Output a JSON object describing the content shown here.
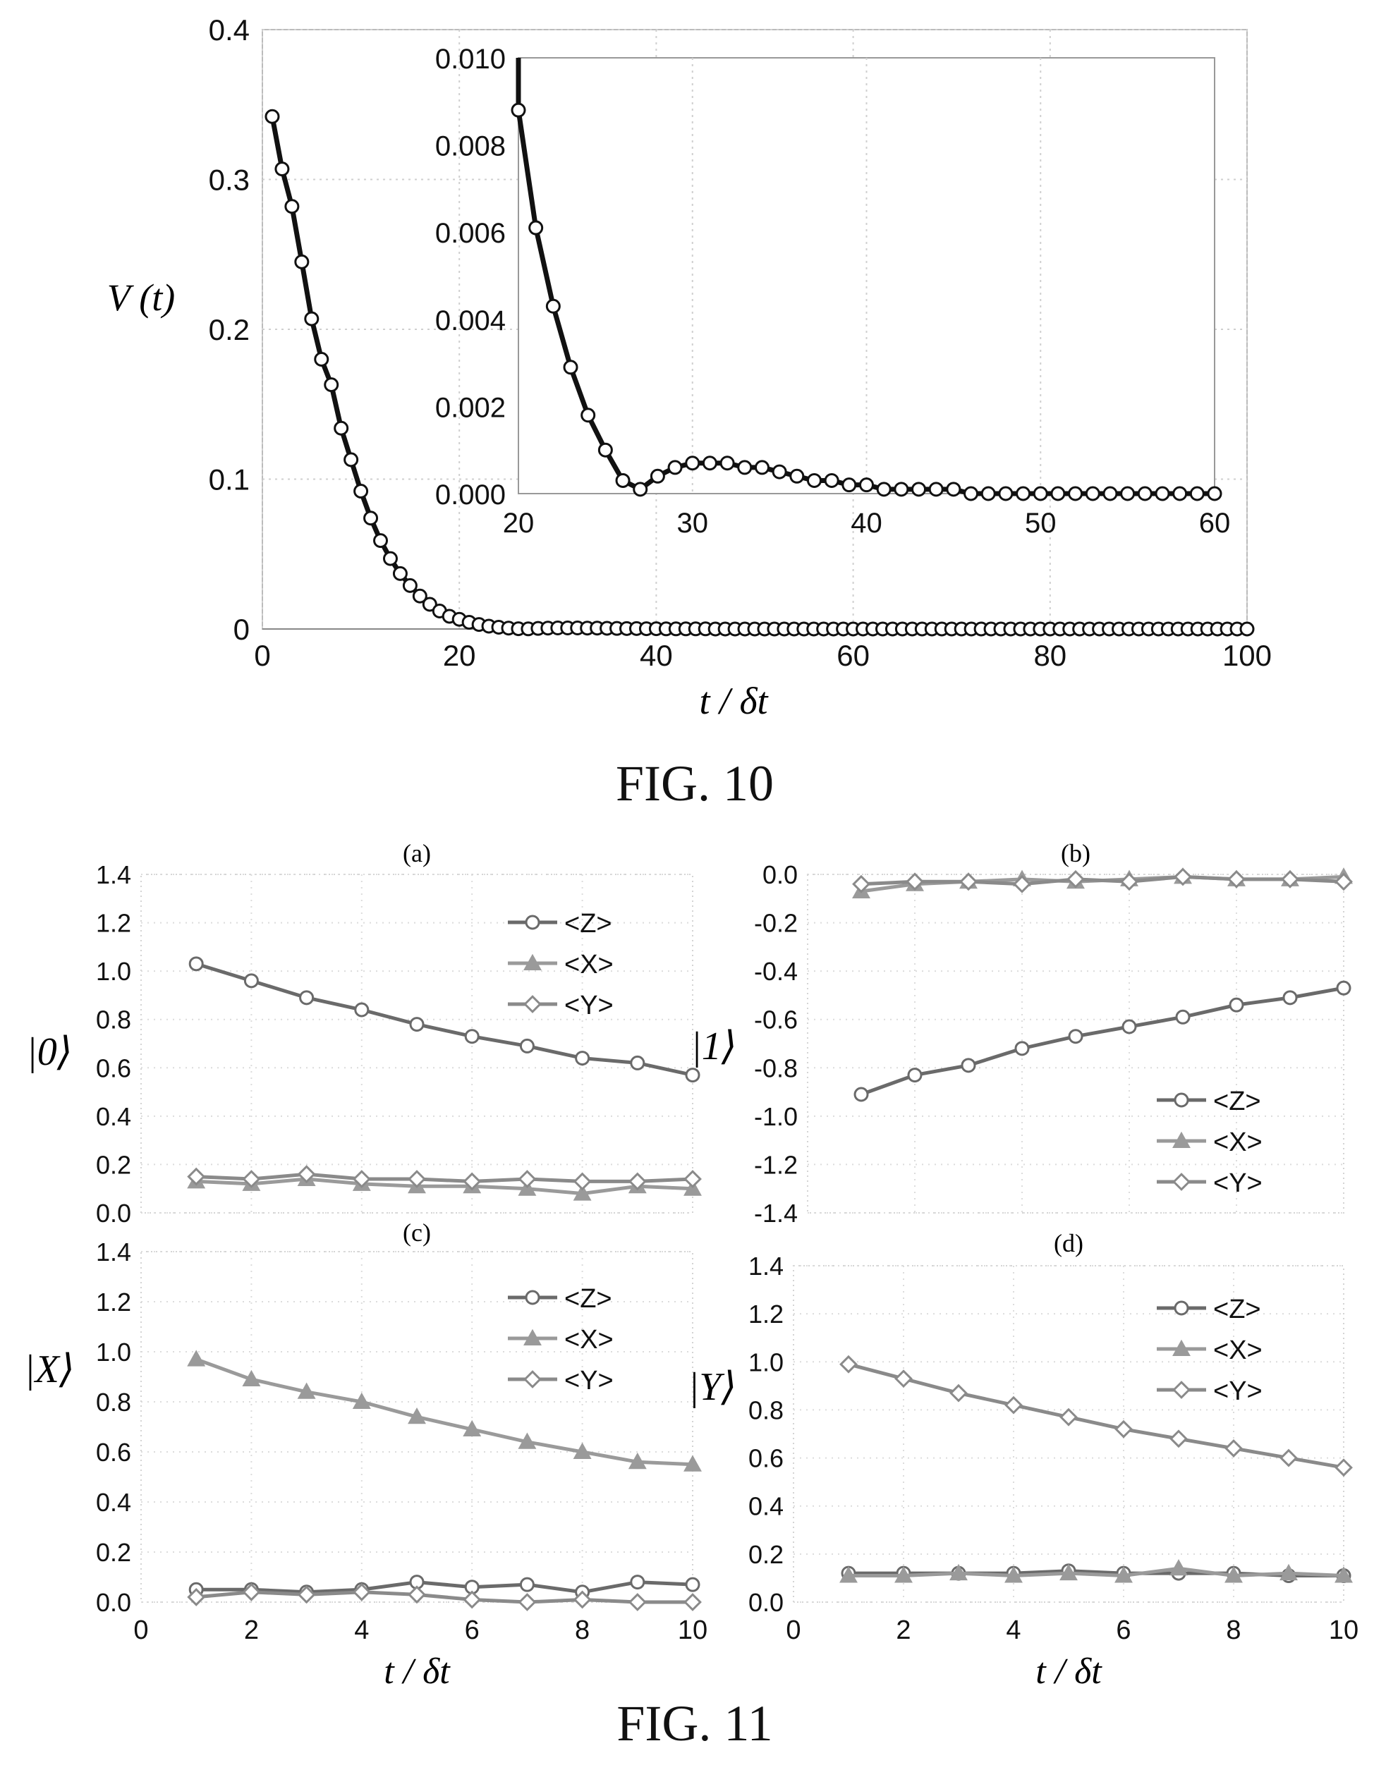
{
  "fig10": {
    "caption": "FIG. 10",
    "chart_data": {
      "type": "line",
      "title": "",
      "xlabel": "t / δt",
      "ylabel": "V (t)",
      "xlim": [
        0,
        100
      ],
      "ylim": [
        0,
        0.4
      ],
      "xticks": [
        "0",
        "20",
        "40",
        "60",
        "80",
        "100"
      ],
      "yticks": [
        "0",
        "0.1",
        "0.2",
        "0.3",
        "0.4"
      ],
      "grid": true,
      "series": [
        {
          "name": "",
          "marker": "circle",
          "x": [
            1,
            2,
            3,
            4,
            5,
            6,
            7,
            8,
            9,
            10,
            11,
            12,
            13,
            14,
            15,
            16,
            17,
            18,
            19,
            20,
            21,
            22,
            23,
            24,
            25,
            26,
            27,
            28,
            29,
            30,
            31,
            32,
            33,
            34,
            35,
            36,
            37,
            38,
            39,
            40,
            41,
            42,
            43,
            44,
            45,
            46,
            47,
            48,
            49,
            50,
            51,
            52,
            53,
            54,
            55,
            56,
            57,
            58,
            59,
            60,
            61,
            62,
            63,
            64,
            65,
            66,
            67,
            68,
            69,
            70,
            71,
            72,
            73,
            74,
            75,
            76,
            77,
            78,
            79,
            80,
            81,
            82,
            83,
            84,
            85,
            86,
            87,
            88,
            89,
            90,
            91,
            92,
            93,
            94,
            95,
            96,
            97,
            98,
            99,
            100
          ],
          "y": [
            0.342,
            0.307,
            0.282,
            0.245,
            0.207,
            0.18,
            0.163,
            0.134,
            0.113,
            0.092,
            0.074,
            0.059,
            0.047,
            0.037,
            0.029,
            0.022,
            0.0165,
            0.012,
            0.0085,
            0.0065,
            0.0045,
            0.003,
            0.0019,
            0.0012,
            0.0006,
            0.0002,
            0.0001,
            0.0004,
            0.0006,
            0.0007,
            0.0007,
            0.0007,
            0.0006,
            0.0006,
            0.0005,
            0.0004,
            0.0003,
            0.0003,
            0.0002,
            0.0002,
            0.0001,
            0.0001,
            0.0001,
            0.0001,
            0.0001,
            0,
            0,
            0,
            0,
            0,
            0,
            0,
            0,
            0,
            0,
            0,
            0,
            0,
            0,
            0,
            0,
            0,
            0,
            0,
            0,
            0,
            0,
            0,
            0,
            0,
            0,
            0,
            0,
            0,
            0,
            0,
            0,
            0,
            0,
            0,
            0,
            0,
            0,
            0,
            0,
            0,
            0,
            0,
            0,
            0,
            0,
            0,
            0,
            0,
            0,
            0,
            0,
            0,
            0,
            0
          ]
        }
      ],
      "inset": {
        "xlim": [
          20,
          60
        ],
        "ylim": [
          0,
          0.01
        ],
        "xticks": [
          "20",
          "30",
          "40",
          "50",
          "60"
        ],
        "yticks": [
          "0.000",
          "0.002",
          "0.004",
          "0.006",
          "0.008",
          "0.010"
        ],
        "x": [
          20,
          21,
          22,
          23,
          24,
          25,
          26,
          27,
          28,
          29,
          30,
          31,
          32,
          33,
          34,
          35,
          36,
          37,
          38,
          39,
          40,
          41,
          42,
          43,
          44,
          45,
          46,
          47,
          48,
          49,
          50,
          51,
          52,
          53,
          54,
          55,
          56,
          57,
          58,
          59,
          60
        ],
        "y": [
          0.0088,
          0.0061,
          0.0043,
          0.0029,
          0.0018,
          0.001,
          0.0003,
          0.0001,
          0.0004,
          0.0006,
          0.0007,
          0.0007,
          0.0007,
          0.0006,
          0.0006,
          0.0005,
          0.0004,
          0.0003,
          0.0003,
          0.0002,
          0.0002,
          0.0001,
          0.0001,
          0.0001,
          0.0001,
          0.0001,
          0,
          0,
          0,
          0,
          0,
          0,
          0,
          0,
          0,
          0,
          0,
          0,
          0,
          0,
          0
        ]
      }
    }
  },
  "fig11": {
    "caption": "FIG. 11",
    "legend_labels": [
      "<Z>",
      "<X>",
      "<Y>"
    ],
    "chart_data": [
      {
        "type": "line",
        "panel": "(a)",
        "ylabel": "|0⟩",
        "xlabel": "",
        "xlim": [
          0,
          10
        ],
        "ylim": [
          0,
          1.4
        ],
        "yticks": [
          "0.0",
          "0.2",
          "0.4",
          "0.6",
          "0.8",
          "1.0",
          "1.2",
          "1.4"
        ],
        "xticks": [],
        "legend": "top-right",
        "x": [
          1,
          2,
          3,
          4,
          5,
          6,
          7,
          8,
          9,
          10
        ],
        "series": [
          {
            "name": "<Z>",
            "marker": "circle",
            "values": [
              1.03,
              0.96,
              0.89,
              0.84,
              0.78,
              0.73,
              0.69,
              0.64,
              0.62,
              0.57
            ]
          },
          {
            "name": "<X>",
            "marker": "triangle",
            "values": [
              0.13,
              0.12,
              0.14,
              0.12,
              0.11,
              0.11,
              0.1,
              0.08,
              0.11,
              0.1
            ]
          },
          {
            "name": "<Y>",
            "marker": "diamond",
            "values": [
              0.15,
              0.14,
              0.16,
              0.14,
              0.14,
              0.13,
              0.14,
              0.13,
              0.13,
              0.14
            ]
          }
        ]
      },
      {
        "type": "line",
        "panel": "(b)",
        "ylabel": "|1⟩",
        "xlabel": "",
        "xlim": [
          0,
          10
        ],
        "ylim": [
          -1.4,
          0.0
        ],
        "yticks": [
          "0.0",
          "-0.2",
          "-0.4",
          "-0.6",
          "-0.8",
          "-1.0",
          "-1.2",
          "-1.4"
        ],
        "xticks": [],
        "legend": "bottom-right",
        "x": [
          1,
          2,
          3,
          4,
          5,
          6,
          7,
          8,
          9,
          10
        ],
        "series": [
          {
            "name": "<Z>",
            "marker": "circle",
            "values": [
              -0.91,
              -0.83,
              -0.79,
              -0.72,
              -0.67,
              -0.63,
              -0.59,
              -0.54,
              -0.51,
              -0.47
            ]
          },
          {
            "name": "<X>",
            "marker": "triangle",
            "values": [
              -0.07,
              -0.04,
              -0.03,
              -0.02,
              -0.03,
              -0.02,
              -0.01,
              -0.02,
              -0.02,
              -0.01
            ]
          },
          {
            "name": "<Y>",
            "marker": "diamond",
            "values": [
              -0.04,
              -0.03,
              -0.03,
              -0.04,
              -0.02,
              -0.03,
              -0.01,
              -0.02,
              -0.02,
              -0.03
            ]
          }
        ]
      },
      {
        "type": "line",
        "panel": "(c)",
        "ylabel": "|X⟩",
        "xlabel": "t / δt",
        "xlim": [
          0,
          10
        ],
        "ylim": [
          0,
          1.4
        ],
        "yticks": [
          "0.0",
          "0.2",
          "0.4",
          "0.6",
          "0.8",
          "1.0",
          "1.2",
          "1.4"
        ],
        "xticks": [
          "0",
          "2",
          "4",
          "6",
          "8",
          "10"
        ],
        "legend": "top-right",
        "x": [
          1,
          2,
          3,
          4,
          5,
          6,
          7,
          8,
          9,
          10
        ],
        "series": [
          {
            "name": "<Z>",
            "marker": "circle",
            "values": [
              0.05,
              0.05,
              0.04,
              0.05,
              0.08,
              0.06,
              0.07,
              0.04,
              0.08,
              0.07
            ]
          },
          {
            "name": "<X>",
            "marker": "triangle",
            "values": [
              0.97,
              0.89,
              0.84,
              0.8,
              0.74,
              0.69,
              0.64,
              0.6,
              0.56,
              0.55
            ]
          },
          {
            "name": "<Y>",
            "marker": "diamond",
            "values": [
              0.02,
              0.04,
              0.03,
              0.04,
              0.03,
              0.01,
              0.0,
              0.01,
              0.0,
              0.0
            ]
          }
        ]
      },
      {
        "type": "line",
        "panel": "(d)",
        "ylabel": "|Y⟩",
        "xlabel": "t / δt",
        "xlim": [
          0,
          10
        ],
        "ylim": [
          0,
          1.4
        ],
        "yticks": [
          "0.0",
          "0.2",
          "0.4",
          "0.6",
          "0.8",
          "1.0",
          "1.2",
          "1.4"
        ],
        "xticks": [
          "0",
          "2",
          "4",
          "6",
          "8",
          "10"
        ],
        "legend": "top-right",
        "x": [
          1,
          2,
          3,
          4,
          5,
          6,
          7,
          8,
          9,
          10
        ],
        "series": [
          {
            "name": "<Z>",
            "marker": "circle",
            "values": [
              0.12,
              0.12,
              0.12,
              0.12,
              0.13,
              0.12,
              0.12,
              0.12,
              0.11,
              0.11
            ]
          },
          {
            "name": "<X>",
            "marker": "triangle",
            "values": [
              0.11,
              0.11,
              0.12,
              0.11,
              0.12,
              0.11,
              0.14,
              0.11,
              0.12,
              0.11
            ]
          },
          {
            "name": "<Y>",
            "marker": "diamond",
            "values": [
              0.99,
              0.93,
              0.87,
              0.82,
              0.77,
              0.72,
              0.68,
              0.64,
              0.6,
              0.56
            ]
          }
        ]
      }
    ]
  }
}
